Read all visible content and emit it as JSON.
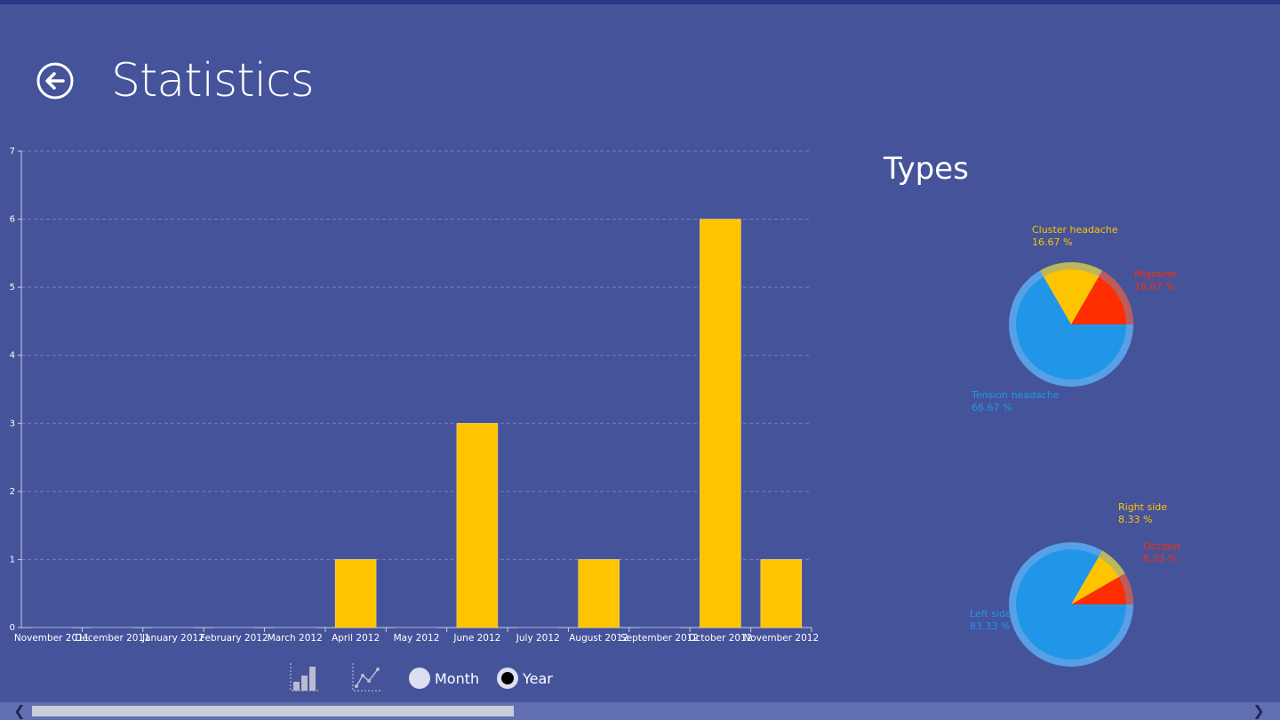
{
  "header": {
    "title": "Statistics"
  },
  "types_title": "Types",
  "controls": {
    "month_label": "Month",
    "year_label": "Year",
    "selected": "Year"
  },
  "colors": {
    "background": "#45539a",
    "bar": "#ffc400",
    "pie_blue": "#2196e8",
    "pie_yellow": "#ffc400",
    "pie_red": "#ff2e00"
  },
  "chart_data": [
    {
      "type": "bar",
      "categories": [
        "November 2011",
        "December 2011",
        "January 2012",
        "February 2012",
        "March 2012",
        "April 2012",
        "May 2012",
        "June 2012",
        "July 2012",
        "August 2012",
        "September 2012",
        "October 2012",
        "November 2012"
      ],
      "values": [
        0,
        0,
        0,
        0,
        0,
        1,
        0,
        3,
        0,
        1,
        0,
        6,
        1
      ],
      "ylim": [
        0,
        7
      ],
      "yticks": [
        "0",
        "1",
        "2",
        "3",
        "4",
        "5",
        "6",
        "7"
      ],
      "grid": true
    },
    {
      "type": "pie",
      "slices": [
        {
          "label": "Cluster headache",
          "percent_text": "16.67 %",
          "value": 16.67,
          "color": "#ffc400"
        },
        {
          "label": "Migraine",
          "percent_text": "16.67 %",
          "value": 16.67,
          "color": "#ff2e00"
        },
        {
          "label": "Tension headache",
          "percent_text": "66.67 %",
          "value": 66.67,
          "color": "#2196e8"
        }
      ]
    },
    {
      "type": "pie",
      "slices": [
        {
          "label": "Right side",
          "percent_text": "8.33 %",
          "value": 8.33,
          "color": "#ffc400"
        },
        {
          "label": "Occiput",
          "percent_text": "8.33 %",
          "value": 8.33,
          "color": "#ff2e00"
        },
        {
          "label": "Left side",
          "percent_text": "83.33 %",
          "value": 83.33,
          "color": "#2196e8"
        }
      ]
    }
  ]
}
